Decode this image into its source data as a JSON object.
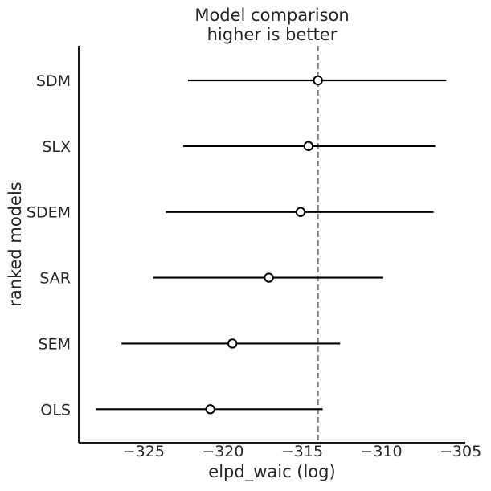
{
  "chart_data": {
    "type": "errorbar",
    "title": "Model comparison",
    "subtitle": "higher is better",
    "xlabel": "elpd_waic (log)",
    "ylabel": "ranked models",
    "xlim": [
      -329.1,
      -304.7
    ],
    "x_ticks": [
      -325,
      -320,
      -315,
      -310,
      -305
    ],
    "reference_line_x": -314.0,
    "grid": false,
    "legend": "none",
    "models": [
      {
        "name": "SDM",
        "elpd": -314.0,
        "ci_lower": -322.2,
        "ci_upper": -305.9
      },
      {
        "name": "SLX",
        "elpd": -314.6,
        "ci_lower": -322.5,
        "ci_upper": -306.6
      },
      {
        "name": "SDEM",
        "elpd": -315.1,
        "ci_lower": -323.6,
        "ci_upper": -306.7
      },
      {
        "name": "SAR",
        "elpd": -317.1,
        "ci_lower": -324.4,
        "ci_upper": -309.9
      },
      {
        "name": "SEM",
        "elpd": -319.4,
        "ci_lower": -326.4,
        "ci_upper": -312.6
      },
      {
        "name": "OLS",
        "elpd": -320.8,
        "ci_lower": -328.0,
        "ci_upper": -313.7
      }
    ],
    "colors": {
      "errorbar": "#000000",
      "marker_edge": "#000000",
      "marker_fill": "#ffffff",
      "reference_line": "#7a7a7a",
      "spine": "#1a1a1a",
      "text": "#262626"
    }
  }
}
